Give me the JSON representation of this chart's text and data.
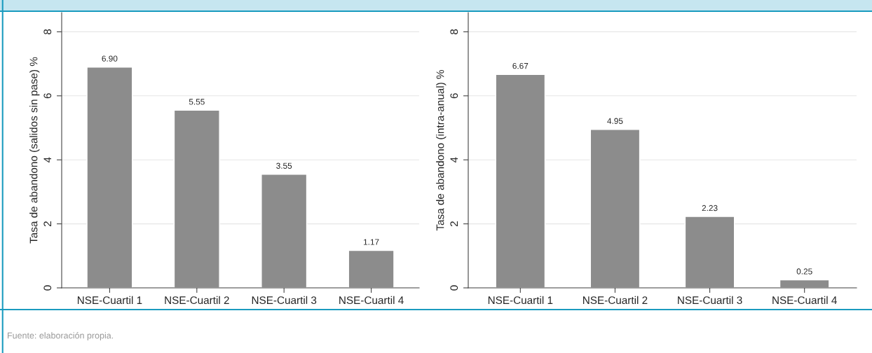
{
  "chart_data": [
    {
      "type": "bar",
      "categories": [
        "NSE-Cuartil 1",
        "NSE-Cuartil 2",
        "NSE-Cuartil 3",
        "NSE-Cuartil 4"
      ],
      "values": [
        6.9,
        5.55,
        3.55,
        1.17
      ],
      "color": "#8c8c8c",
      "value_labels": [
        "6.90",
        "5.55",
        "3.55",
        "1.17"
      ],
      "ylabel": "Tasa de abandono (salidos sin pase) %",
      "ylim": [
        0,
        8.6
      ],
      "yticks": [
        0,
        2,
        4,
        6,
        8
      ],
      "grid": "y",
      "annotations": [
        "Fuente: elaboración propia."
      ]
    },
    {
      "type": "bar",
      "categories": [
        "NSE-Cuartil 1",
        "NSE-Cuartil 2",
        "NSE-Cuartil 3",
        "NSE-Cuartil 4"
      ],
      "values": [
        6.67,
        4.95,
        2.23,
        0.25
      ],
      "color": "#8c8c8c",
      "value_labels": [
        "6.67",
        "4.95",
        "2.23",
        "0.25"
      ],
      "ylabel": "Tasa de abandono (intra-anual) %",
      "ylim": [
        0,
        8.6
      ],
      "yticks": [
        0,
        2,
        4,
        6,
        8
      ],
      "grid": "y"
    }
  ]
}
